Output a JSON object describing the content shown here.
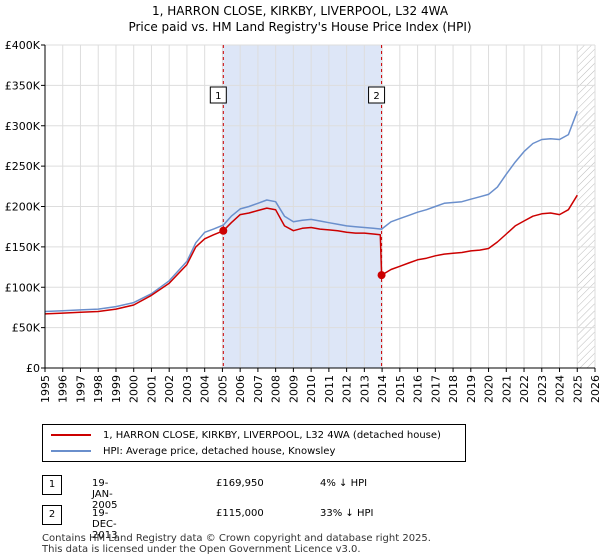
{
  "header": {
    "title": "1, HARRON CLOSE, KIRKBY, LIVERPOOL, L32 4WA",
    "subtitle": "Price paid vs. HM Land Registry's House Price Index (HPI)"
  },
  "colors": {
    "property": "#cc0000",
    "hpi": "#6a8fcc",
    "shade": "#dde6f7",
    "marker_line": "#cc0000"
  },
  "legend": {
    "items": [
      {
        "label": "1, HARRON CLOSE, KIRKBY, LIVERPOOL, L32 4WA (detached house)"
      },
      {
        "label": "HPI: Average price, detached house, Knowsley"
      }
    ]
  },
  "transactions": [
    {
      "num": "1",
      "date": "19-JAN-2005",
      "price": "£169,950",
      "hpi": "4% ↓ HPI"
    },
    {
      "num": "2",
      "date": "19-DEC-2013",
      "price": "£115,000",
      "hpi": "33% ↓ HPI"
    }
  ],
  "footer": {
    "line1": "Contains HM Land Registry data © Crown copyright and database right 2025.",
    "line2": "This data is licensed under the Open Government Licence v3.0."
  },
  "chart_data": {
    "type": "line",
    "xlim": [
      1995,
      2026
    ],
    "ylim": [
      0,
      400000
    ],
    "y_ticks": [
      {
        "value": 0,
        "label": "£0"
      },
      {
        "value": 50000,
        "label": "£50K"
      },
      {
        "value": 100000,
        "label": "£100K"
      },
      {
        "value": 150000,
        "label": "£150K"
      },
      {
        "value": 200000,
        "label": "£200K"
      },
      {
        "value": 250000,
        "label": "£250K"
      },
      {
        "value": 300000,
        "label": "£300K"
      },
      {
        "value": 350000,
        "label": "£350K"
      },
      {
        "value": 400000,
        "label": "£400K"
      }
    ],
    "x_ticks": [
      "1995",
      "1996",
      "1997",
      "1998",
      "1999",
      "2000",
      "2001",
      "2002",
      "2003",
      "2004",
      "2005",
      "2006",
      "2007",
      "2008",
      "2009",
      "2010",
      "2011",
      "2012",
      "2013",
      "2014",
      "2015",
      "2016",
      "2017",
      "2018",
      "2019",
      "2020",
      "2021",
      "2022",
      "2023",
      "2024",
      "2025",
      "2026"
    ],
    "shaded_range": [
      2005.05,
      2013.97
    ],
    "hatched_from": 2025.0,
    "sales": [
      {
        "label": "1",
        "x": 2005.05,
        "y": 169950
      },
      {
        "label": "2",
        "x": 2013.97,
        "y": 115000
      }
    ],
    "series": [
      {
        "name": "1, HARRON CLOSE, KIRKBY, LIVERPOOL, L32 4WA (detached house)",
        "x": [
          1995.0,
          1996.0,
          1997.0,
          1998.0,
          1999.0,
          2000.0,
          2001.0,
          2002.0,
          2003.0,
          2003.5,
          2004.0,
          2004.5,
          2005.05,
          2005.5,
          2006.0,
          2006.5,
          2007.0,
          2007.5,
          2008.0,
          2008.5,
          2009.0,
          2009.5,
          2010.0,
          2010.5,
          2011.0,
          2011.5,
          2012.0,
          2012.5,
          2013.0,
          2013.5,
          2013.9,
          2013.97,
          2014.5,
          2015.0,
          2015.5,
          2016.0,
          2016.5,
          2017.0,
          2017.5,
          2018.0,
          2018.5,
          2019.0,
          2019.5,
          2020.0,
          2020.5,
          2021.0,
          2021.5,
          2022.0,
          2022.5,
          2023.0,
          2023.5,
          2024.0,
          2024.5,
          2025.0
        ],
        "y": [
          67000,
          68000,
          69000,
          70000,
          73000,
          78000,
          90000,
          105000,
          128000,
          150000,
          160000,
          165000,
          169950,
          180000,
          190000,
          192000,
          195000,
          198000,
          196000,
          176000,
          170000,
          173000,
          174000,
          172000,
          171000,
          170000,
          168000,
          167000,
          167000,
          166000,
          165000,
          115000,
          122000,
          126000,
          130000,
          134000,
          136000,
          139000,
          141000,
          142000,
          143000,
          145000,
          146000,
          148000,
          156000,
          166000,
          176000,
          182000,
          188000,
          191000,
          192000,
          190000,
          196000,
          214000
        ]
      },
      {
        "name": "HPI: Average price, detached house, Knowsley",
        "x": [
          1995.0,
          1996.0,
          1997.0,
          1998.0,
          1999.0,
          2000.0,
          2001.0,
          2002.0,
          2003.0,
          2003.5,
          2004.0,
          2004.5,
          2005.05,
          2005.5,
          2006.0,
          2006.5,
          2007.0,
          2007.5,
          2008.0,
          2008.5,
          2009.0,
          2009.5,
          2010.0,
          2010.5,
          2011.0,
          2011.5,
          2012.0,
          2012.5,
          2013.0,
          2013.5,
          2013.97,
          2014.5,
          2015.0,
          2015.5,
          2016.0,
          2016.5,
          2017.0,
          2017.5,
          2018.0,
          2018.5,
          2019.0,
          2019.5,
          2020.0,
          2020.5,
          2021.0,
          2021.5,
          2022.0,
          2022.5,
          2023.0,
          2023.5,
          2024.0,
          2024.5,
          2025.0
        ],
        "y": [
          70000,
          71000,
          72000,
          73000,
          76000,
          81000,
          92000,
          108000,
          132000,
          155000,
          168000,
          172000,
          177000,
          188000,
          197000,
          200000,
          204000,
          208000,
          206000,
          188000,
          181000,
          183000,
          184000,
          182000,
          180000,
          178000,
          176000,
          175000,
          174000,
          173000,
          172000,
          181000,
          185000,
          189000,
          193000,
          196000,
          200000,
          204000,
          205000,
          206000,
          209000,
          212000,
          215000,
          224000,
          240000,
          255000,
          268000,
          278000,
          283000,
          284000,
          283000,
          289000,
          318000
        ]
      }
    ]
  }
}
